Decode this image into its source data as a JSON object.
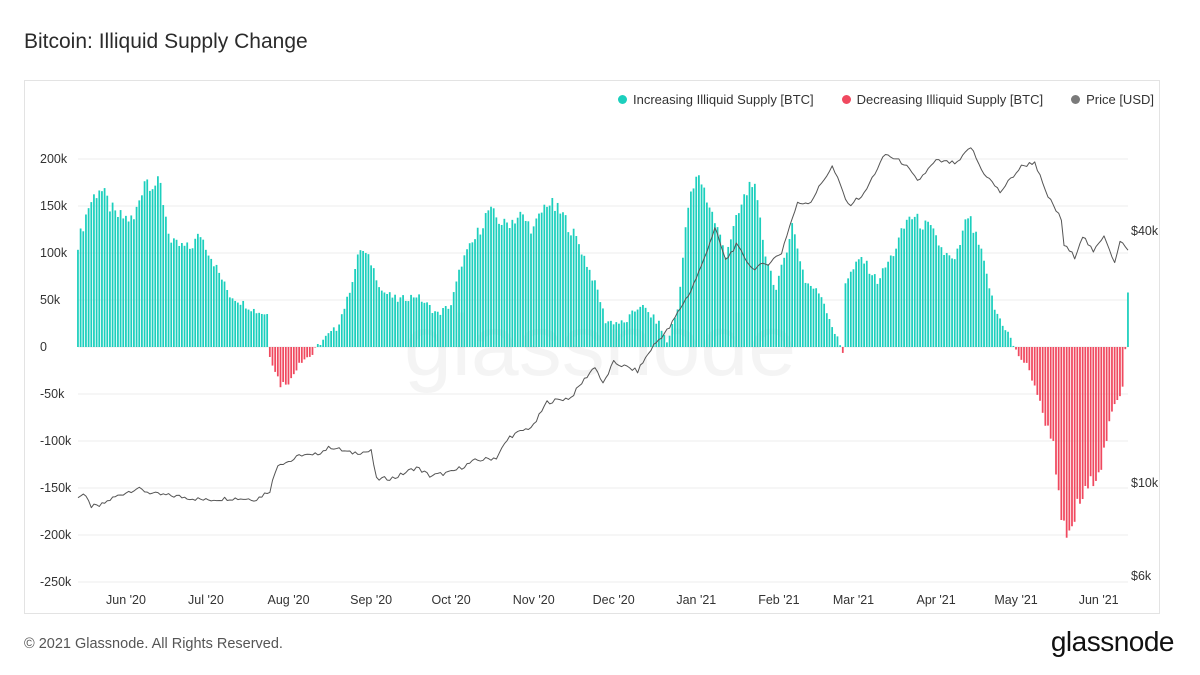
{
  "page": {
    "title": "Bitcoin: Illiquid Supply Change",
    "copyright": "© 2021 Glassnode. All Rights Reserved.",
    "logo": "glassnode",
    "watermark": "glassnode"
  },
  "colors": {
    "increase": "#1ccfbd",
    "decrease": "#f0495f",
    "price": "#555555",
    "price_dot": "#7a7a7a"
  },
  "chart_data": {
    "type": "bar",
    "title": "Bitcoin: Illiquid Supply Change",
    "legend_position": "top-right",
    "grid": "horizontal",
    "series": [
      {
        "name": "Increasing Illiquid Supply [BTC]",
        "color": "#1ccfbd"
      },
      {
        "name": "Decreasing Illiquid Supply [BTC]",
        "color": "#f0495f"
      },
      {
        "name": "Price [USD]",
        "color": "#7a7a7a"
      }
    ],
    "x_range": [
      "2020-05-14",
      "2021-06-12"
    ],
    "x_ticks": [
      {
        "date": "2020-06-01",
        "label": "Jun '20"
      },
      {
        "date": "2020-07-01",
        "label": "Jul '20"
      },
      {
        "date": "2020-08-01",
        "label": "Aug '20"
      },
      {
        "date": "2020-09-01",
        "label": "Sep '20"
      },
      {
        "date": "2020-10-01",
        "label": "Oct '20"
      },
      {
        "date": "2020-11-01",
        "label": "Nov '20"
      },
      {
        "date": "2020-12-01",
        "label": "Dec '20"
      },
      {
        "date": "2021-01-01",
        "label": "Jan '21"
      },
      {
        "date": "2021-02-01",
        "label": "Feb '21"
      },
      {
        "date": "2021-03-01",
        "label": "Mar '21"
      },
      {
        "date": "2021-04-01",
        "label": "Apr '21"
      },
      {
        "date": "2021-05-01",
        "label": "May '21"
      },
      {
        "date": "2021-06-01",
        "label": "Jun '21"
      }
    ],
    "y_left": {
      "range": [
        -250000,
        210000
      ],
      "ticks": [
        {
          "value": 200000,
          "label": "200k"
        },
        {
          "value": 150000,
          "label": "150k"
        },
        {
          "value": 100000,
          "label": "100k"
        },
        {
          "value": 50000,
          "label": "50k"
        },
        {
          "value": 0,
          "label": "0"
        },
        {
          "value": -50000,
          "label": "-50k"
        },
        {
          "value": -100000,
          "label": "-100k"
        },
        {
          "value": -150000,
          "label": "-150k"
        },
        {
          "value": -200000,
          "label": "-200k"
        },
        {
          "value": -250000,
          "label": "-250k"
        }
      ]
    },
    "y_right": {
      "scale": "log",
      "ticks": [
        {
          "value": 40000,
          "label": "$40k"
        },
        {
          "value": 10000,
          "label": "$10k"
        },
        {
          "value": 6000,
          "label": "$6k"
        }
      ]
    },
    "illiquid_supply_change_keyframes": [
      [
        "2020-05-14",
        110000
      ],
      [
        "2020-05-18",
        150000
      ],
      [
        "2020-05-22",
        170000
      ],
      [
        "2020-05-28",
        140000
      ],
      [
        "2020-06-04",
        135000
      ],
      [
        "2020-06-08",
        180000
      ],
      [
        "2020-06-14",
        170000
      ],
      [
        "2020-06-18",
        110000
      ],
      [
        "2020-06-25",
        105000
      ],
      [
        "2020-06-29",
        120000
      ],
      [
        "2020-07-04",
        90000
      ],
      [
        "2020-07-10",
        55000
      ],
      [
        "2020-07-20",
        38000
      ],
      [
        "2020-07-24",
        35000
      ],
      [
        "2020-07-25",
        -8000
      ],
      [
        "2020-07-29",
        -40000
      ],
      [
        "2020-08-02",
        -35000
      ],
      [
        "2020-08-05",
        -15000
      ],
      [
        "2020-08-10",
        -8000
      ],
      [
        "2020-08-13",
        5000
      ],
      [
        "2020-08-19",
        20000
      ],
      [
        "2020-08-23",
        50000
      ],
      [
        "2020-08-28",
        105000
      ],
      [
        "2020-09-01",
        90000
      ],
      [
        "2020-09-05",
        60000
      ],
      [
        "2020-09-11",
        50000
      ],
      [
        "2020-09-18",
        55000
      ],
      [
        "2020-09-26",
        35000
      ],
      [
        "2020-10-01",
        45000
      ],
      [
        "2020-10-05",
        90000
      ],
      [
        "2020-10-10",
        115000
      ],
      [
        "2020-10-15",
        145000
      ],
      [
        "2020-10-21",
        130000
      ],
      [
        "2020-10-27",
        140000
      ],
      [
        "2020-11-01",
        125000
      ],
      [
        "2020-11-06",
        155000
      ],
      [
        "2020-11-12",
        140000
      ],
      [
        "2020-11-18",
        110000
      ],
      [
        "2020-11-25",
        60000
      ],
      [
        "2020-11-28",
        28000
      ],
      [
        "2020-12-05",
        25000
      ],
      [
        "2020-12-11",
        45000
      ],
      [
        "2020-12-18",
        25000
      ],
      [
        "2020-12-21",
        5000
      ],
      [
        "2020-12-25",
        40000
      ],
      [
        "2020-12-29",
        150000
      ],
      [
        "2021-01-02",
        185000
      ],
      [
        "2021-01-06",
        150000
      ],
      [
        "2021-01-12",
        100000
      ],
      [
        "2021-01-18",
        150000
      ],
      [
        "2021-01-22",
        180000
      ],
      [
        "2021-01-27",
        100000
      ],
      [
        "2021-01-31",
        60000
      ],
      [
        "2021-02-06",
        130000
      ],
      [
        "2021-02-11",
        70000
      ],
      [
        "2021-02-17",
        55000
      ],
      [
        "2021-02-22",
        15000
      ],
      [
        "2021-02-25",
        -5000
      ],
      [
        "2021-02-26",
        70000
      ],
      [
        "2021-03-04",
        95000
      ],
      [
        "2021-03-10",
        70000
      ],
      [
        "2021-03-16",
        100000
      ],
      [
        "2021-03-22",
        140000
      ],
      [
        "2021-03-30",
        125000
      ],
      [
        "2021-04-04",
        100000
      ],
      [
        "2021-04-08",
        90000
      ],
      [
        "2021-04-13",
        140000
      ],
      [
        "2021-04-18",
        100000
      ],
      [
        "2021-04-23",
        40000
      ],
      [
        "2021-04-28",
        15000
      ],
      [
        "2021-05-01",
        -5000
      ],
      [
        "2021-05-05",
        -20000
      ],
      [
        "2021-05-08",
        -40000
      ],
      [
        "2021-05-12",
        -80000
      ],
      [
        "2021-05-15",
        -100000
      ],
      [
        "2021-05-18",
        -190000
      ],
      [
        "2021-05-21",
        -205000
      ],
      [
        "2021-05-24",
        -170000
      ],
      [
        "2021-05-28",
        -150000
      ],
      [
        "2021-06-02",
        -125000
      ],
      [
        "2021-06-06",
        -70000
      ],
      [
        "2021-06-09",
        -50000
      ],
      [
        "2021-06-10",
        -40000
      ],
      [
        "2021-06-11",
        0
      ],
      [
        "2021-06-12",
        60000
      ]
    ],
    "price_usd_keyframes": [
      [
        "2020-05-14",
        9300
      ],
      [
        "2020-05-16",
        9400
      ],
      [
        "2020-05-19",
        8800
      ],
      [
        "2020-05-22",
        8800
      ],
      [
        "2020-05-27",
        9200
      ],
      [
        "2020-06-01",
        9500
      ],
      [
        "2020-06-05",
        9700
      ],
      [
        "2020-06-12",
        9400
      ],
      [
        "2020-06-20",
        9300
      ],
      [
        "2020-07-01",
        9100
      ],
      [
        "2020-07-10",
        9200
      ],
      [
        "2020-07-20",
        9150
      ],
      [
        "2020-07-25",
        9600
      ],
      [
        "2020-07-28",
        11100
      ],
      [
        "2020-08-02",
        11300
      ],
      [
        "2020-08-06",
        11700
      ],
      [
        "2020-08-10",
        11600
      ],
      [
        "2020-08-17",
        12200
      ],
      [
        "2020-08-24",
        11800
      ],
      [
        "2020-09-01",
        11900
      ],
      [
        "2020-09-03",
        10200
      ],
      [
        "2020-09-10",
        10300
      ],
      [
        "2020-09-18",
        10900
      ],
      [
        "2020-09-23",
        10400
      ],
      [
        "2020-10-01",
        10600
      ],
      [
        "2020-10-10",
        11300
      ],
      [
        "2020-10-18",
        11500
      ],
      [
        "2020-10-23",
        12900
      ],
      [
        "2020-11-01",
        13700
      ],
      [
        "2020-11-06",
        15600
      ],
      [
        "2020-11-15",
        16000
      ],
      [
        "2020-11-24",
        19000
      ],
      [
        "2020-11-27",
        17200
      ],
      [
        "2020-12-01",
        19400
      ],
      [
        "2020-12-10",
        18500
      ],
      [
        "2020-12-16",
        21300
      ],
      [
        "2020-12-22",
        23500
      ],
      [
        "2020-12-30",
        28800
      ],
      [
        "2021-01-03",
        33000
      ],
      [
        "2021-01-08",
        40500
      ],
      [
        "2021-01-12",
        34000
      ],
      [
        "2021-01-16",
        37000
      ],
      [
        "2021-01-22",
        32500
      ],
      [
        "2021-01-28",
        33500
      ],
      [
        "2021-02-02",
        35500
      ],
      [
        "2021-02-08",
        46500
      ],
      [
        "2021-02-13",
        47000
      ],
      [
        "2021-02-21",
        57000
      ],
      [
        "2021-02-27",
        46000
      ],
      [
        "2021-03-05",
        49000
      ],
      [
        "2021-03-13",
        61000
      ],
      [
        "2021-03-20",
        58000
      ],
      [
        "2021-03-25",
        52500
      ],
      [
        "2021-04-01",
        58800
      ],
      [
        "2021-04-09",
        58000
      ],
      [
        "2021-04-14",
        63500
      ],
      [
        "2021-04-18",
        56000
      ],
      [
        "2021-04-25",
        49500
      ],
      [
        "2021-05-03",
        57000
      ],
      [
        "2021-05-08",
        58500
      ],
      [
        "2021-05-12",
        49500
      ],
      [
        "2021-05-18",
        42500
      ],
      [
        "2021-05-19",
        37000
      ],
      [
        "2021-05-23",
        34700
      ],
      [
        "2021-05-26",
        39000
      ],
      [
        "2021-05-30",
        35500
      ],
      [
        "2021-06-03",
        39200
      ],
      [
        "2021-06-07",
        33500
      ],
      [
        "2021-06-09",
        37500
      ],
      [
        "2021-06-11",
        37000
      ],
      [
        "2021-06-12",
        35800
      ]
    ]
  }
}
